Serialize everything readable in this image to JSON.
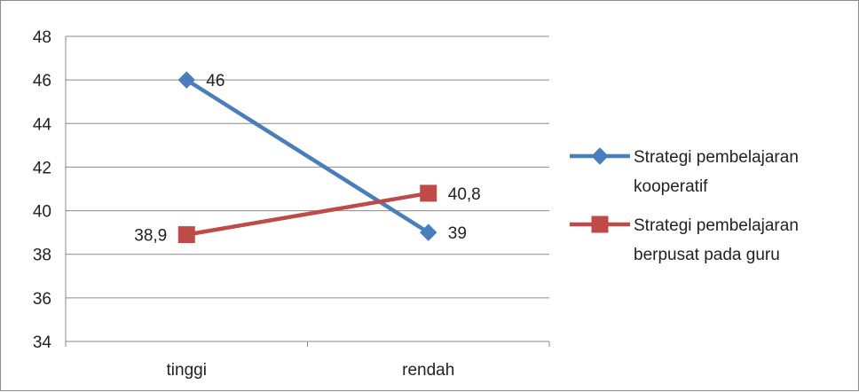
{
  "chart_data": {
    "type": "line",
    "categories": [
      "tinggi",
      "rendah"
    ],
    "ylim": [
      34,
      48
    ],
    "yticks": [
      34,
      36,
      38,
      40,
      42,
      44,
      46,
      48
    ],
    "grid": true,
    "legend_position": "right",
    "series": [
      {
        "name_lines": [
          "Strategi pembelajaran",
          "kooperatif"
        ],
        "values": [
          46,
          39
        ],
        "value_labels": [
          "46",
          "39"
        ],
        "color": "#4a7ebb",
        "marker": "diamond"
      },
      {
        "name_lines": [
          "Strategi pembelajaran",
          "berpusat pada guru"
        ],
        "values": [
          38.9,
          40.8
        ],
        "value_labels": [
          "38,9",
          "40,8"
        ],
        "color": "#be4b48",
        "marker": "square"
      }
    ]
  }
}
